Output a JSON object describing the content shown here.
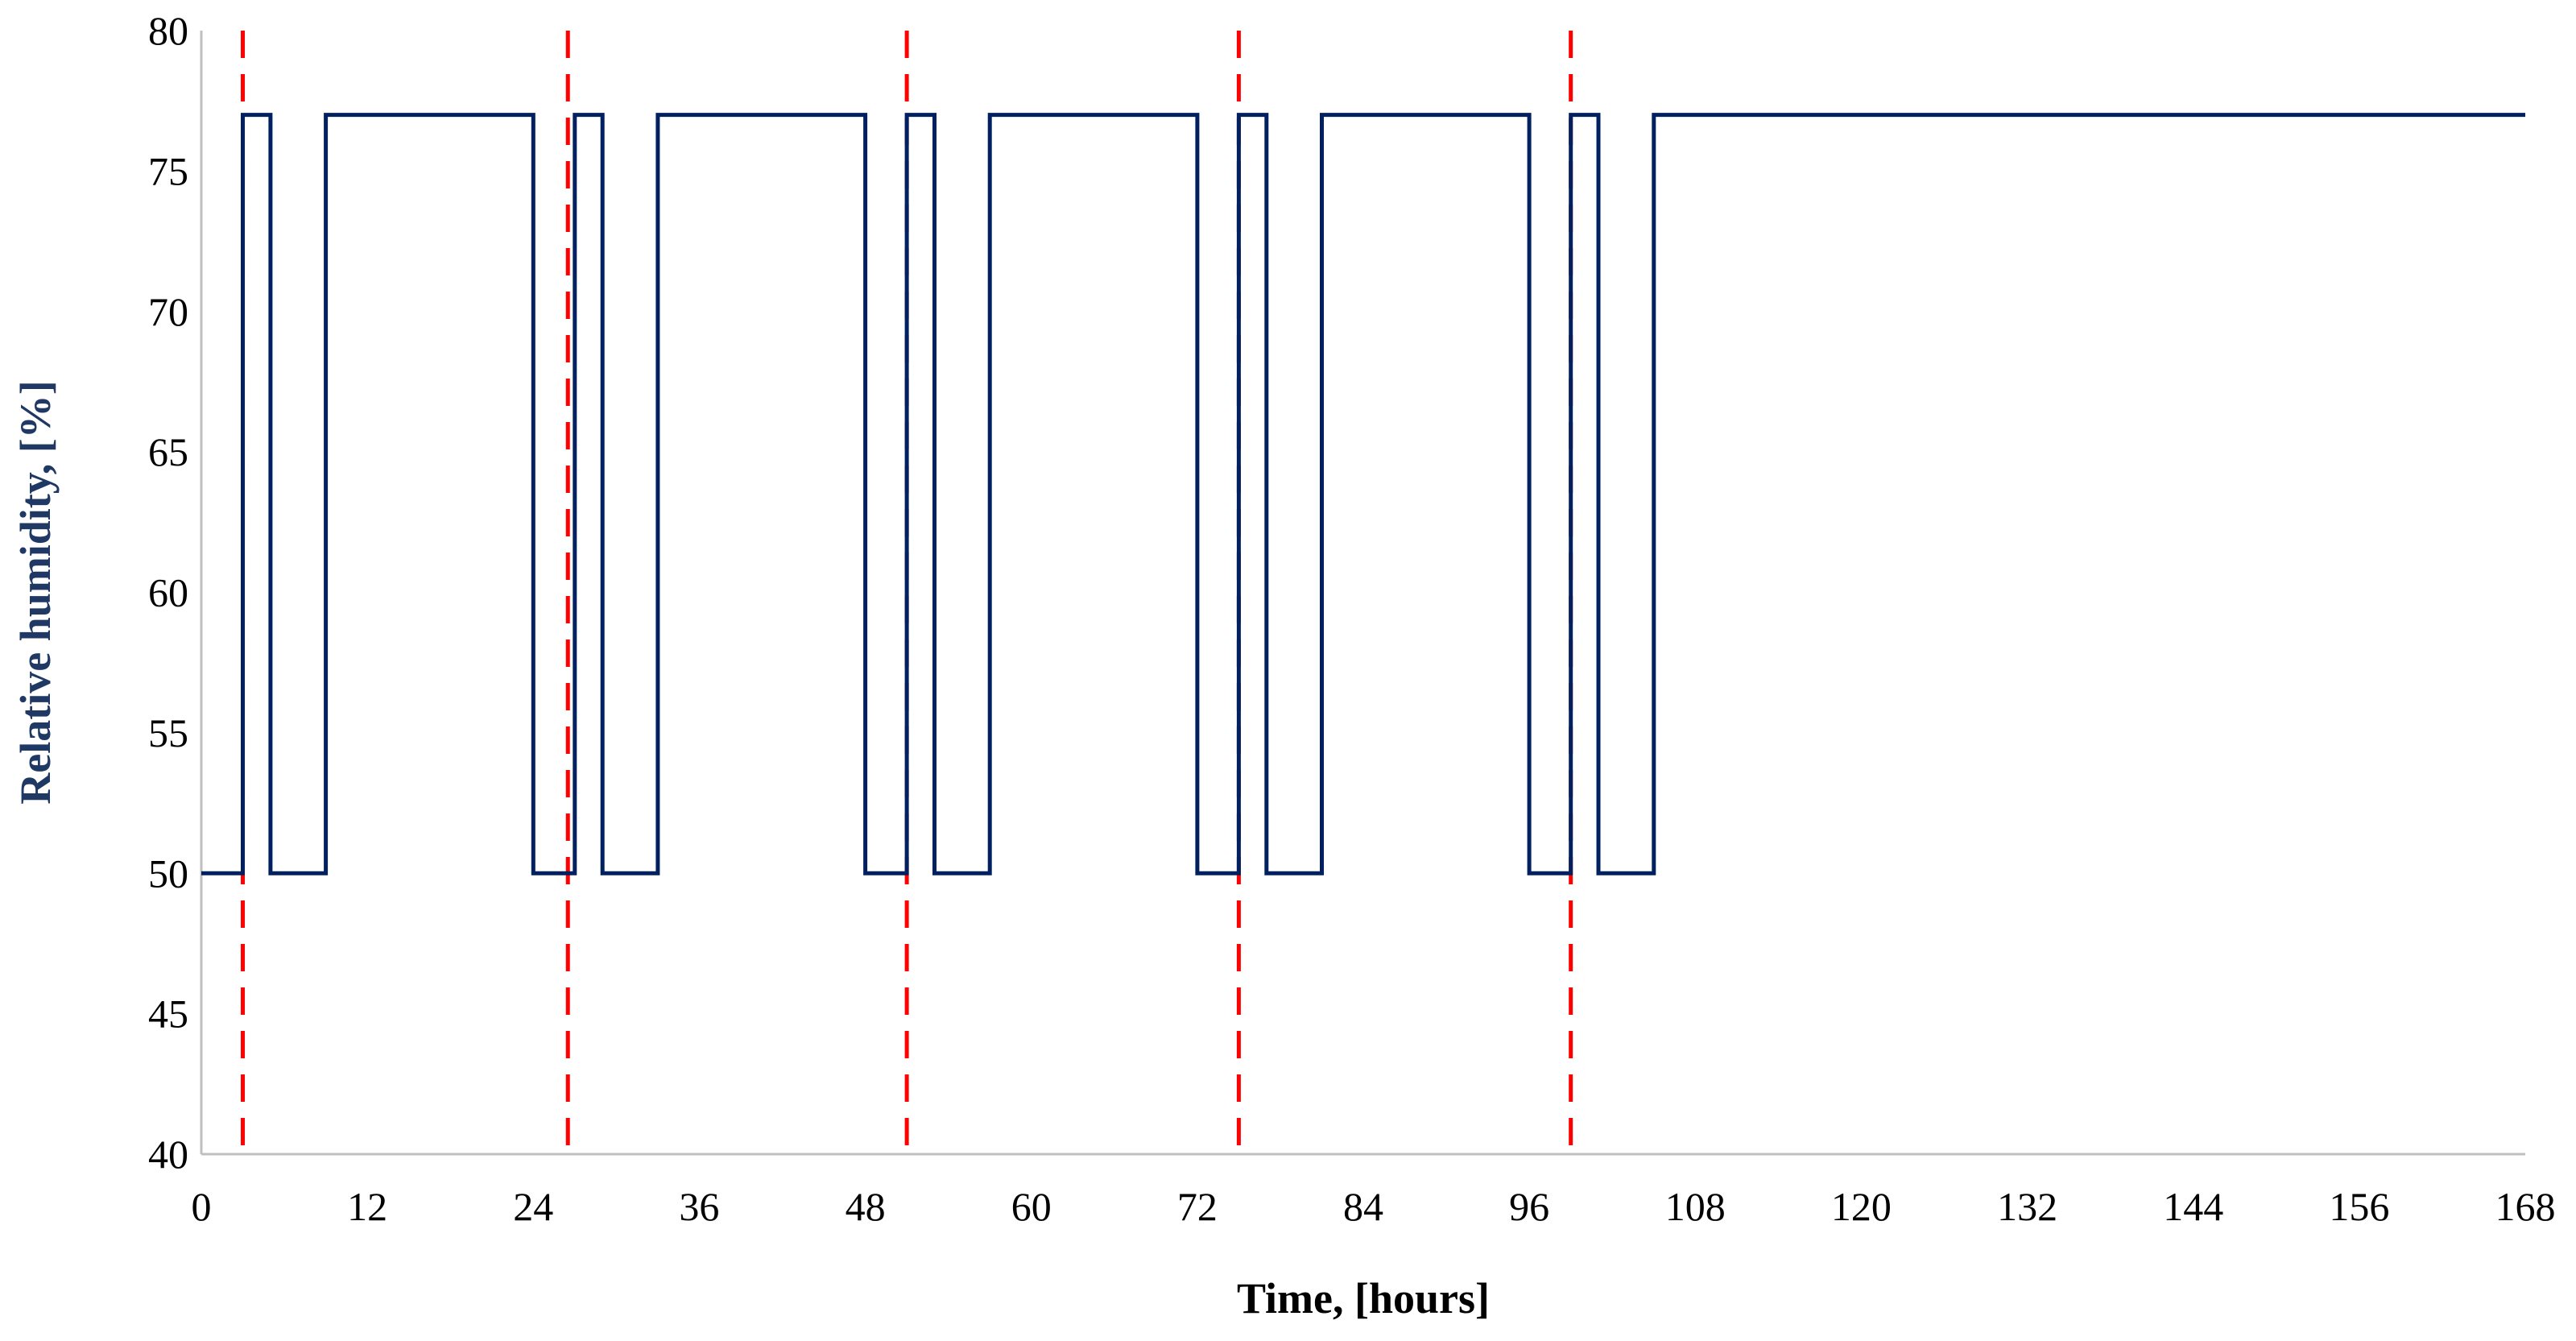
{
  "chart_data": {
    "type": "line",
    "title": "",
    "xlabel": "Time, [hours]",
    "ylabel": "Relative humidity, [%]",
    "xlim": [
      0,
      168
    ],
    "ylim": [
      40,
      80
    ],
    "x_ticks": [
      0,
      12,
      24,
      36,
      48,
      60,
      72,
      84,
      96,
      108,
      120,
      132,
      144,
      156,
      168
    ],
    "y_ticks": [
      40,
      45,
      50,
      55,
      60,
      65,
      70,
      75,
      80
    ],
    "grid": false,
    "legend": "none",
    "series": [
      {
        "color": "#002060",
        "line_style": "solid",
        "step": true,
        "points": [
          [
            0,
            50
          ],
          [
            3,
            50
          ],
          [
            3,
            77
          ],
          [
            5,
            77
          ],
          [
            5,
            50
          ],
          [
            9,
            50
          ],
          [
            9,
            77
          ],
          [
            24,
            77
          ],
          [
            24,
            50
          ],
          [
            27,
            50
          ],
          [
            27,
            77
          ],
          [
            29,
            77
          ],
          [
            29,
            50
          ],
          [
            33,
            50
          ],
          [
            33,
            77
          ],
          [
            48,
            77
          ],
          [
            48,
            50
          ],
          [
            51,
            50
          ],
          [
            51,
            77
          ],
          [
            53,
            77
          ],
          [
            53,
            50
          ],
          [
            57,
            50
          ],
          [
            57,
            77
          ],
          [
            72,
            77
          ],
          [
            72,
            50
          ],
          [
            75,
            50
          ],
          [
            75,
            77
          ],
          [
            77,
            77
          ],
          [
            77,
            50
          ],
          [
            81,
            50
          ],
          [
            81,
            77
          ],
          [
            96,
            77
          ],
          [
            96,
            50
          ],
          [
            99,
            50
          ],
          [
            99,
            77
          ],
          [
            101,
            77
          ],
          [
            101,
            50
          ],
          [
            105,
            50
          ],
          [
            105,
            77
          ],
          [
            168,
            77
          ]
        ]
      }
    ],
    "vertical_markers": {
      "color": "#ff0000",
      "line_style": "dashed",
      "x": [
        3,
        26.5,
        51,
        75,
        99
      ]
    },
    "colors": {
      "axis_title": "#1f3864",
      "axis_line": "#bfbfbf",
      "tick_text": "#000000"
    }
  }
}
